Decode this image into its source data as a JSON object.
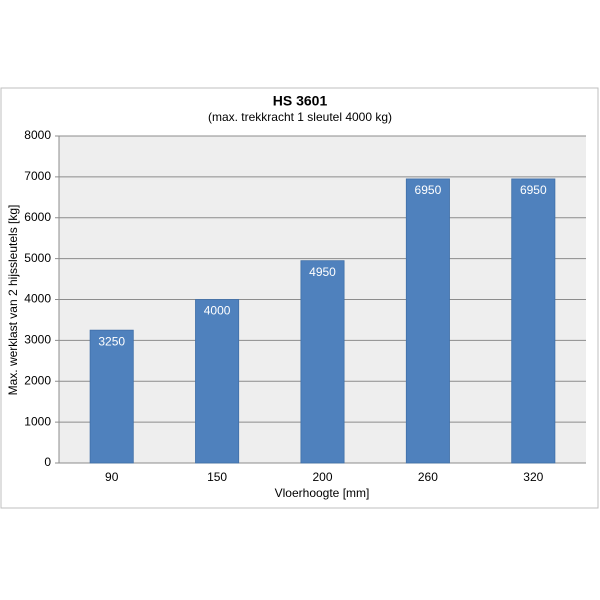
{
  "chart_data": {
    "type": "bar",
    "title": "HS 3601",
    "subtitle": "(max. trekkracht 1 sleutel 4000 kg)",
    "x_label": "Vloerhoogte [mm]",
    "y_label": "Max. werklast van 2 hijssleutels [kg]",
    "categories": [
      "90",
      "150",
      "200",
      "260",
      "320"
    ],
    "values": [
      3250,
      4000,
      4950,
      6950,
      6950
    ],
    "color": "#4f81bd",
    "ylim": [
      0,
      8000
    ],
    "yticks": [
      0,
      1000,
      2000,
      3000,
      4000,
      5000,
      6000,
      7000,
      8000
    ],
    "grid": true
  }
}
